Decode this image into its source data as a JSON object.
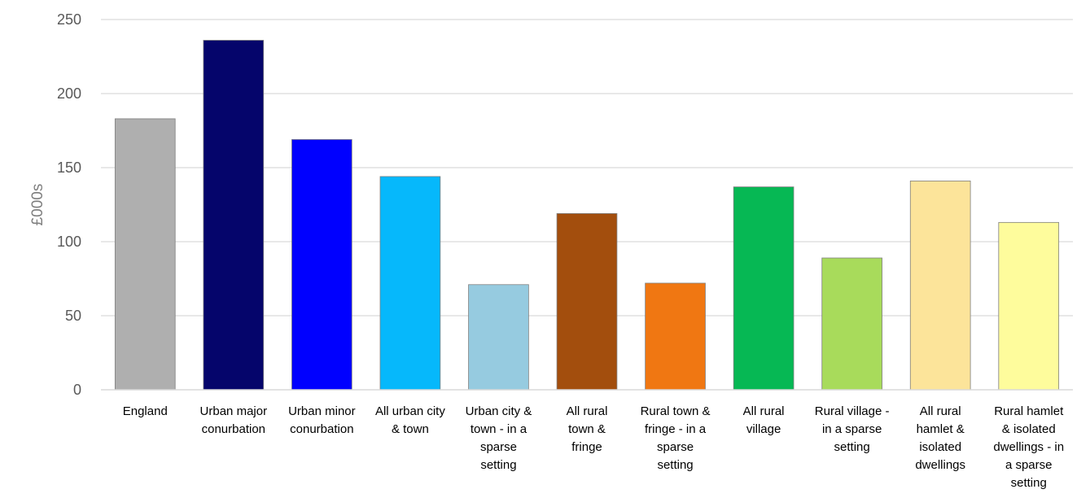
{
  "chart_data": {
    "type": "bar",
    "title": "",
    "xlabel": "",
    "ylabel": "£000s",
    "ylim": [
      0,
      250
    ],
    "yticks": [
      0,
      50,
      100,
      150,
      200,
      250
    ],
    "grid": true,
    "legend": "none",
    "categories": [
      [
        "England"
      ],
      [
        "Urban major",
        "conurbation"
      ],
      [
        "Urban minor",
        "conurbation"
      ],
      [
        "All urban city",
        "& town"
      ],
      [
        "Urban city &",
        "town - in a",
        "sparse",
        "setting"
      ],
      [
        "All rural",
        "town &",
        "fringe"
      ],
      [
        "Rural town &",
        "fringe - in a",
        "sparse",
        "setting"
      ],
      [
        "All rural",
        "village"
      ],
      [
        "Rural village -",
        "in a sparse",
        "setting"
      ],
      [
        "All rural",
        "hamlet &",
        "isolated",
        "dwellings"
      ],
      [
        "Rural hamlet",
        "& isolated",
        "dwellings - in",
        "a sparse",
        "setting"
      ]
    ],
    "values": [
      183,
      236,
      169,
      144,
      71,
      119,
      72,
      137,
      89,
      141,
      113
    ],
    "colors": [
      "#afafaf",
      "#05056b",
      "#0000ff",
      "#06b8fb",
      "#96cbe0",
      "#a34e0d",
      "#f07712",
      "#06b854",
      "#a8db5b",
      "#fce49a",
      "#fefc9c"
    ]
  }
}
